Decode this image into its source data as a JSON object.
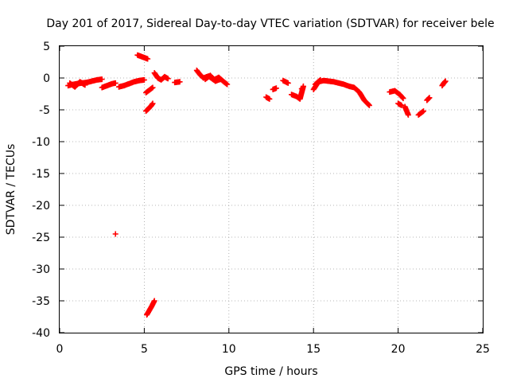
{
  "chart_data": {
    "type": "scatter",
    "title": "Day 201 of 2017, Sidereal Day-to-day VTEC variation (SDTVAR) for receiver bele",
    "xlabel": "GPS time / hours",
    "ylabel": "SDTVAR / TECUs",
    "xlim": [
      0,
      25
    ],
    "ylim": [
      -40,
      5
    ],
    "xticks": [
      "0",
      "5",
      "10",
      "15",
      "20",
      "25"
    ],
    "yticks": [
      "5",
      "0",
      "-5",
      "-10",
      "-15",
      "-20",
      "-25",
      "-30",
      "-35",
      "-40"
    ],
    "grid": true,
    "marker": "+",
    "color": "#ff0000",
    "segments": [
      {
        "x": [
          0.5,
          0.8,
          1.0,
          1.3,
          1.6,
          1.9,
          2.2,
          2.5
        ],
        "y": [
          -1.2,
          -1.0,
          -0.9,
          -0.8,
          -0.7,
          -0.5,
          -0.3,
          -0.2
        ]
      },
      {
        "x": [
          0.6,
          0.9,
          1.2,
          1.5
        ],
        "y": [
          -0.8,
          -1.4,
          -0.6,
          -1.1
        ]
      },
      {
        "x": [
          2.5,
          2.7,
          2.9,
          3.1,
          3.3
        ],
        "y": [
          -1.5,
          -1.3,
          -1.1,
          -0.9,
          -0.8
        ]
      },
      {
        "x": [
          3.5,
          3.8,
          4.1,
          4.4,
          4.7,
          5.0
        ],
        "y": [
          -1.4,
          -1.2,
          -0.9,
          -0.6,
          -0.4,
          -0.3
        ]
      },
      {
        "x": [
          4.6,
          4.8,
          5.0,
          5.2
        ],
        "y": [
          3.6,
          3.4,
          3.2,
          3.0
        ]
      },
      {
        "x": [
          5.1,
          5.25,
          5.4,
          5.5
        ],
        "y": [
          -2.3,
          -2.0,
          -1.7,
          -1.5
        ]
      },
      {
        "x": [
          5.1,
          5.25,
          5.4,
          5.5
        ],
        "y": [
          -5.2,
          -4.8,
          -4.4,
          -4.0
        ]
      },
      {
        "x": [
          5.6,
          5.8,
          6.0,
          6.2,
          6.4
        ],
        "y": [
          0.8,
          0.0,
          -0.3,
          0.2,
          -0.1
        ]
      },
      {
        "x": [
          6.8,
          7.1
        ],
        "y": [
          -0.7,
          -0.6
        ]
      },
      {
        "x": [
          8.1,
          8.3,
          8.5,
          8.8,
          9.1,
          9.4,
          9.7,
          9.9
        ],
        "y": [
          1.2,
          0.5,
          0.0,
          0.3,
          -0.3,
          0.1,
          -0.6,
          -1.0
        ]
      },
      {
        "x": [
          8.6,
          8.9,
          9.2,
          9.5
        ],
        "y": [
          -0.2,
          0.4,
          -0.5,
          -0.2
        ]
      },
      {
        "x": [
          12.2,
          12.4
        ],
        "y": [
          -3.0,
          -3.3
        ]
      },
      {
        "x": [
          12.6,
          12.8
        ],
        "y": [
          -1.8,
          -1.6
        ]
      },
      {
        "x": [
          13.2,
          13.5
        ],
        "y": [
          -0.4,
          -0.8
        ]
      },
      {
        "x": [
          13.7,
          14.0,
          14.2,
          14.4
        ],
        "y": [
          -2.6,
          -2.9,
          -3.3,
          -1.3
        ]
      },
      {
        "x": [
          14.3
        ],
        "y": [
          -1.7
        ]
      },
      {
        "x": [
          15.0,
          15.3,
          15.6,
          15.9,
          16.2,
          16.5,
          16.8,
          17.1,
          17.4,
          17.7,
          18.0,
          18.3
        ],
        "y": [
          -1.8,
          -0.6,
          -0.4,
          -0.5,
          -0.6,
          -0.8,
          -1.0,
          -1.3,
          -1.5,
          -2.2,
          -3.5,
          -4.3
        ]
      },
      {
        "x": [
          15.1,
          15.4
        ],
        "y": [
          -1.0,
          -0.3
        ]
      },
      {
        "x": [
          19.5,
          19.8,
          20.1,
          20.3
        ],
        "y": [
          -2.2,
          -2.0,
          -2.6,
          -3.2
        ]
      },
      {
        "x": [
          20.0,
          20.2
        ],
        "y": [
          -4.0,
          -4.3
        ]
      },
      {
        "x": [
          20.4,
          20.6
        ],
        "y": [
          -4.5,
          -5.8
        ]
      },
      {
        "x": [
          21.2,
          21.5
        ],
        "y": [
          -5.8,
          -5.2
        ]
      },
      {
        "x": [
          21.7,
          21.85
        ],
        "y": [
          -3.5,
          -3.1
        ]
      },
      {
        "x": [
          22.6,
          22.7,
          22.8
        ],
        "y": [
          -1.2,
          -0.8,
          -0.5
        ]
      },
      {
        "x": [
          3.3
        ],
        "y": [
          -24.5
        ]
      },
      {
        "x": [
          5.15,
          5.3,
          5.45,
          5.6
        ],
        "y": [
          -37.2,
          -36.5,
          -35.8,
          -35.0
        ]
      }
    ]
  }
}
